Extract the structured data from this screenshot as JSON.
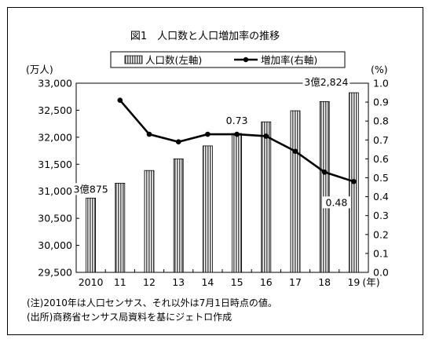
{
  "chart_data": {
    "type": "bar+line",
    "title": "図1　人口数と人口増加率の推移",
    "categories": [
      "2010",
      "11",
      "12",
      "13",
      "14",
      "15",
      "16",
      "17",
      "18",
      "19"
    ],
    "x_unit": "(年)",
    "series": [
      {
        "name": "人口数(左軸)",
        "type": "bar",
        "axis": "left",
        "values": [
          30875,
          31150,
          31385,
          31600,
          31840,
          32070,
          32285,
          32490,
          32660,
          32824
        ]
      },
      {
        "name": "増加率(右軸)",
        "type": "line",
        "axis": "right",
        "values": [
          null,
          0.91,
          0.73,
          0.69,
          0.73,
          0.73,
          0.72,
          0.64,
          0.53,
          0.48
        ]
      }
    ],
    "y_left": {
      "unit": "(万人)",
      "range": [
        29500,
        33000
      ],
      "ticks": [
        "29,500",
        "30,000",
        "30,500",
        "31,000",
        "31,500",
        "32,000",
        "32,500",
        "33,000"
      ]
    },
    "y_right": {
      "unit": "(%)",
      "range": [
        0.0,
        1.0
      ],
      "ticks": [
        "0.0",
        "0.1",
        "0.2",
        "0.3",
        "0.4",
        "0.5",
        "0.6",
        "0.7",
        "0.8",
        "0.9",
        "1.0"
      ]
    },
    "annotations": [
      {
        "text": "3億875",
        "series": 0,
        "index": 0
      },
      {
        "text": "3億2,824",
        "series": 0,
        "index": 9
      },
      {
        "text": "0.73",
        "series": 1,
        "index": 5
      },
      {
        "text": "0.48",
        "series": 1,
        "index": 9
      }
    ],
    "legend_position": "top"
  },
  "notes": [
    "(注)2010年は人口センサス、それ以外は7月1日時点の値。",
    "(出所)商務省センサス局資料を基にジェトロ作成"
  ]
}
